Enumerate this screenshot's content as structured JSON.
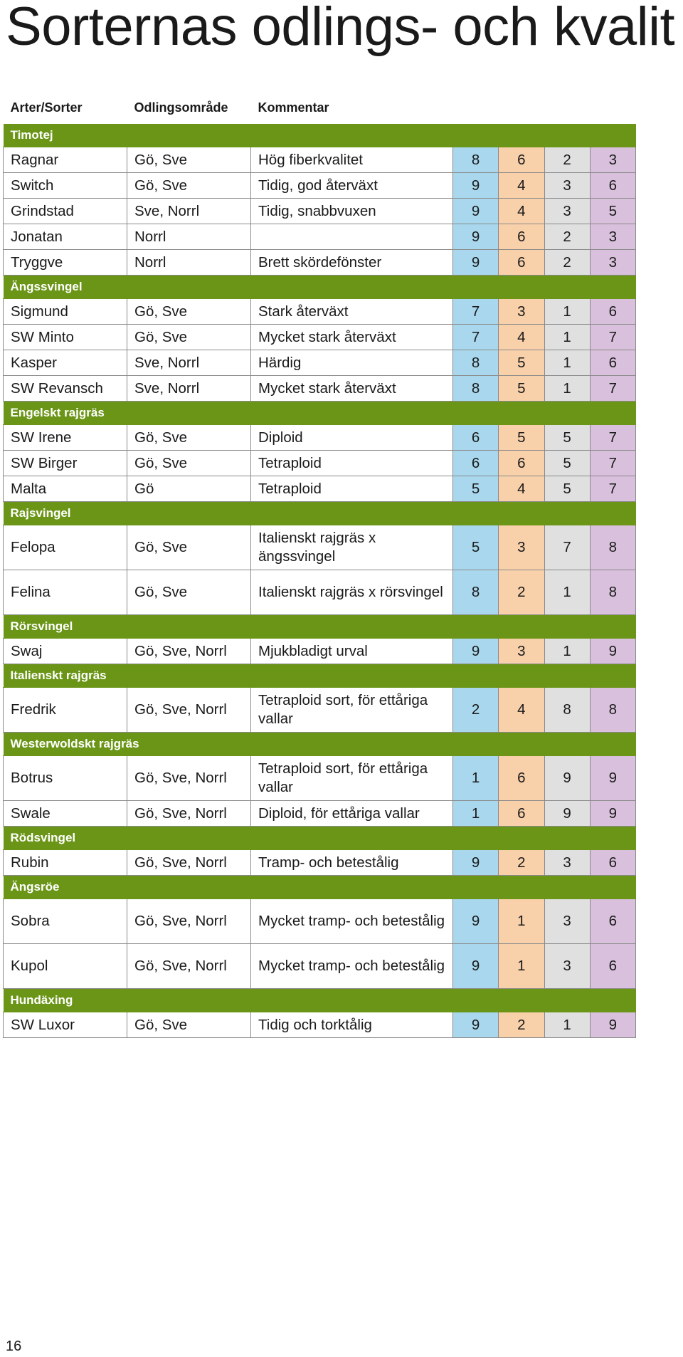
{
  "title": "Sorternas odlings- och kvalit",
  "headers": {
    "name": "Arter/Sorter",
    "area": "Odlingsområde",
    "comment": "Kommentar"
  },
  "groups": [
    {
      "name": "Timotej",
      "rows": [
        {
          "name": "Ragnar",
          "area": "Gö, Sve",
          "comment": "Hög fiberkvalitet",
          "values": [
            "8",
            "6",
            "2",
            "3"
          ]
        },
        {
          "name": "Switch",
          "area": "Gö, Sve",
          "comment": "Tidig, god återväxt",
          "values": [
            "9",
            "4",
            "3",
            "6"
          ]
        },
        {
          "name": "Grindstad",
          "area": "Sve, Norrl",
          "comment": "Tidig, snabbvuxen",
          "values": [
            "9",
            "4",
            "3",
            "5"
          ]
        },
        {
          "name": "Jonatan",
          "area": "Norrl",
          "comment": "",
          "values": [
            "9",
            "6",
            "2",
            "3"
          ]
        },
        {
          "name": "Tryggve",
          "area": "Norrl",
          "comment": "Brett skördefönster",
          "values": [
            "9",
            "6",
            "2",
            "3"
          ]
        }
      ]
    },
    {
      "name": "Ängssvingel",
      "rows": [
        {
          "name": "Sigmund",
          "area": "Gö, Sve",
          "comment": "Stark återväxt",
          "values": [
            "7",
            "3",
            "1",
            "6"
          ]
        },
        {
          "name": "SW Minto",
          "area": "Gö, Sve",
          "comment": "Mycket stark återväxt",
          "values": [
            "7",
            "4",
            "1",
            "7"
          ]
        },
        {
          "name": "Kasper",
          "area": "Sve, Norrl",
          "comment": "Härdig",
          "values": [
            "8",
            "5",
            "1",
            "6"
          ]
        },
        {
          "name": "SW Revansch",
          "area": "Sve, Norrl",
          "comment": "Mycket stark återväxt",
          "values": [
            "8",
            "5",
            "1",
            "7"
          ]
        }
      ]
    },
    {
      "name": "Engelskt rajgräs",
      "rows": [
        {
          "name": "SW Irene",
          "area": "Gö, Sve",
          "comment": "Diploid",
          "values": [
            "6",
            "5",
            "5",
            "7"
          ]
        },
        {
          "name": "SW Birger",
          "area": "Gö, Sve",
          "comment": "Tetraploid",
          "values": [
            "6",
            "6",
            "5",
            "7"
          ]
        },
        {
          "name": "Malta",
          "area": "Gö",
          "comment": "Tetraploid",
          "values": [
            "5",
            "4",
            "5",
            "7"
          ]
        }
      ]
    },
    {
      "name": "Rajsvingel",
      "rows": [
        {
          "name": "Felopa",
          "area": "Gö, Sve",
          "comment": "Italienskt rajgräs x ängssvingel",
          "values": [
            "5",
            "3",
            "7",
            "8"
          ],
          "tall": true
        },
        {
          "name": "Felina",
          "area": "Gö, Sve",
          "comment": "Italienskt rajgräs x rörsvingel",
          "values": [
            "8",
            "2",
            "1",
            "8"
          ],
          "tall": true
        }
      ]
    },
    {
      "name": "Rörsvingel",
      "rows": [
        {
          "name": "Swaj",
          "area": "Gö, Sve, Norrl",
          "comment": "Mjukbladigt urval",
          "values": [
            "9",
            "3",
            "1",
            "9"
          ]
        }
      ]
    },
    {
      "name": "Italienskt rajgräs",
      "rows": [
        {
          "name": "Fredrik",
          "area": "Gö, Sve, Norrl",
          "comment": "Tetraploid sort, för ettåriga vallar",
          "values": [
            "2",
            "4",
            "8",
            "8"
          ],
          "tall": true
        }
      ]
    },
    {
      "name": "Westerwoldskt rajgräs",
      "rows": [
        {
          "name": "Botrus",
          "area": "Gö, Sve, Norrl",
          "comment": "Tetraploid sort, för ettåriga vallar",
          "values": [
            "1",
            "6",
            "9",
            "9"
          ],
          "tall": true
        },
        {
          "name": "Swale",
          "area": "Gö, Sve, Norrl",
          "comment": "Diploid, för ettåriga vallar",
          "values": [
            "1",
            "6",
            "9",
            "9"
          ]
        }
      ]
    },
    {
      "name": "Rödsvingel",
      "rows": [
        {
          "name": "Rubin",
          "area": "Gö, Sve, Norrl",
          "comment": "Tramp- och betestålig",
          "values": [
            "9",
            "2",
            "3",
            "6"
          ]
        }
      ]
    },
    {
      "name": "Ängsröe",
      "rows": [
        {
          "name": "Sobra",
          "area": "Gö, Sve, Norrl",
          "comment": "Mycket tramp- och betestålig",
          "values": [
            "9",
            "1",
            "3",
            "6"
          ],
          "tall": true
        },
        {
          "name": "Kupol",
          "area": "Gö, Sve, Norrl",
          "comment": "Mycket tramp- och betestålig",
          "values": [
            "9",
            "1",
            "3",
            "6"
          ],
          "tall": true
        }
      ]
    },
    {
      "name": "Hundäxing",
      "rows": [
        {
          "name": "SW Luxor",
          "area": "Gö, Sve",
          "comment": "Tidig och torktålig",
          "values": [
            "9",
            "2",
            "1",
            "9"
          ]
        }
      ]
    }
  ],
  "page_number": "16"
}
